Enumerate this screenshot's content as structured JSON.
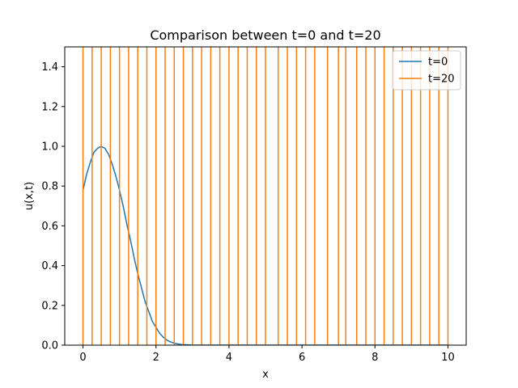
{
  "chart_data": {
    "type": "line",
    "title": "Comparison between t=0 and t=20",
    "xlabel": "x",
    "ylabel": "u(x,t)",
    "xlim": [
      -0.5,
      10.5
    ],
    "ylim": [
      0.0,
      1.5
    ],
    "xticks": [
      0,
      2,
      4,
      6,
      8,
      10
    ],
    "xtick_labels": [
      "0",
      "2",
      "4",
      "6",
      "8",
      "10"
    ],
    "yticks": [
      0.0,
      0.2,
      0.4,
      0.6,
      0.8,
      1.0,
      1.2,
      1.4
    ],
    "ytick_labels": [
      "0.0",
      "0.2",
      "0.4",
      "0.6",
      "0.8",
      "1.0",
      "1.2",
      "1.4"
    ],
    "grid": false,
    "legend_position": "top-right",
    "series": [
      {
        "name": "t=0",
        "color": "#1f77b4",
        "x": [
          0,
          0.1,
          0.2,
          0.3,
          0.4,
          0.5,
          0.6,
          0.7,
          0.8,
          0.9,
          1.0,
          1.1,
          1.2,
          1.3,
          1.4,
          1.5,
          1.6,
          1.7,
          1.8,
          1.9,
          2.0,
          2.1,
          2.2,
          2.3,
          2.4,
          2.5,
          2.6,
          2.7,
          2.8,
          2.9,
          3.0,
          3.5,
          4.0,
          5.0,
          6.0,
          7.0,
          8.0,
          9.0,
          10.0
        ],
        "y": [
          0.78,
          0.86,
          0.92,
          0.97,
          0.99,
          1.0,
          0.99,
          0.96,
          0.91,
          0.85,
          0.78,
          0.7,
          0.61,
          0.53,
          0.44,
          0.36,
          0.29,
          0.22,
          0.17,
          0.12,
          0.09,
          0.06,
          0.04,
          0.025,
          0.016,
          0.01,
          0.006,
          0.003,
          0.002,
          0.001,
          0.0,
          0.0,
          0.0,
          0.0,
          0.0,
          0.0,
          0.0,
          0.0,
          0.0
        ]
      },
      {
        "name": "t=20",
        "color": "#ff7f0e",
        "style": "vertical-lines",
        "x": [
          0.0,
          0.25,
          0.5,
          0.75,
          1.0,
          1.25,
          1.5,
          1.75,
          2.0,
          2.25,
          2.5,
          2.75,
          3.0,
          3.25,
          3.5,
          3.75,
          4.0,
          4.25,
          4.5,
          4.75,
          5.0,
          5.35,
          5.6,
          5.85,
          6.1,
          6.35,
          6.7,
          7.0,
          7.2,
          7.5,
          7.75,
          8.0,
          8.25,
          8.5,
          8.75,
          9.0,
          9.25,
          9.5,
          9.75,
          10.0
        ],
        "y_range": [
          0.0,
          1.5
        ]
      }
    ]
  }
}
